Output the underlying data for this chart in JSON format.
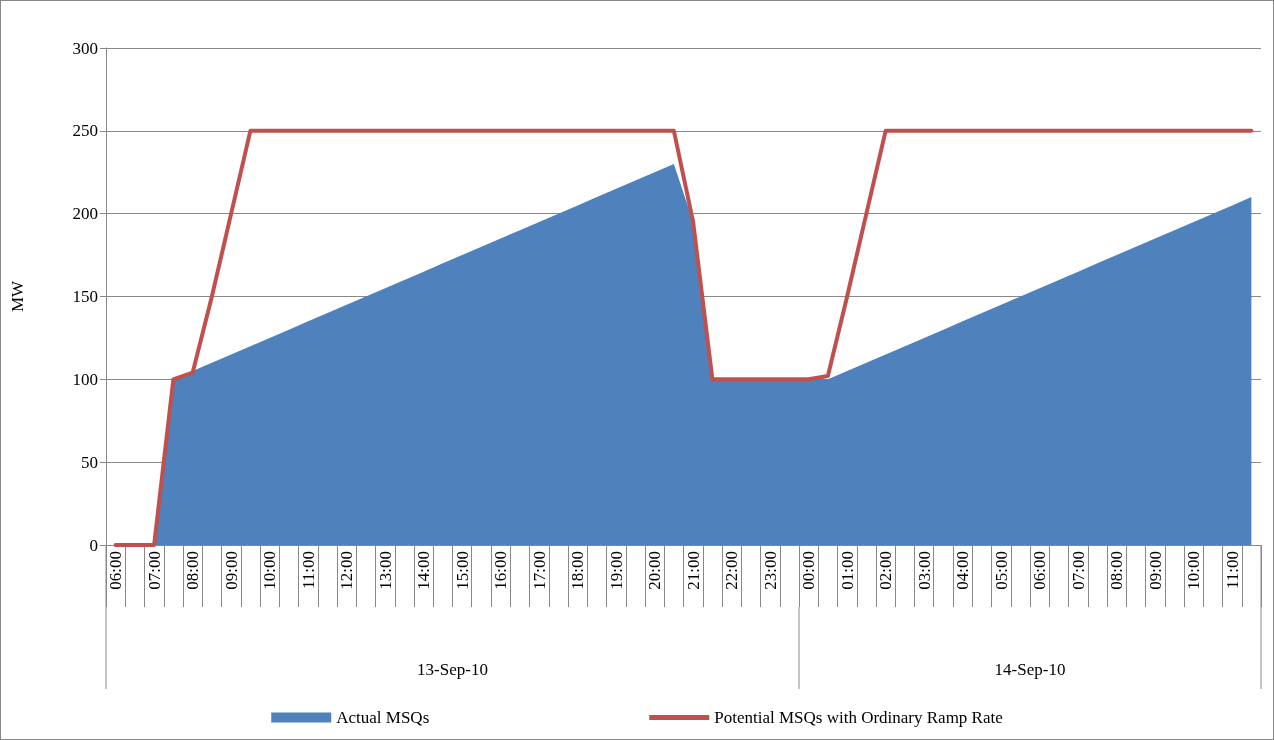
{
  "chart_data": {
    "type": "area",
    "ylabel": "MW",
    "categories": [
      "06:00",
      null,
      "07:00",
      null,
      "08:00",
      null,
      "09:00",
      null,
      "10:00",
      null,
      "11:00",
      null,
      "12:00",
      null,
      "13:00",
      null,
      "14:00",
      null,
      "15:00",
      null,
      "16:00",
      null,
      "17:00",
      null,
      "18:00",
      null,
      "19:00",
      null,
      "20:00",
      null,
      "21:00",
      null,
      "22:00",
      null,
      "23:00",
      null,
      "00:00",
      null,
      "01:00",
      null,
      "02:00",
      null,
      "03:00",
      null,
      "04:00",
      null,
      "05:00",
      null,
      "06:00",
      null,
      "07:00",
      null,
      "08:00",
      null,
      "09:00",
      null,
      "10:00",
      null,
      "11:00",
      null
    ],
    "series": [
      {
        "name": "Actual MSQs",
        "color": "#4f81bd",
        "values": [
          0,
          0,
          0,
          100,
          105,
          110,
          115,
          120,
          125,
          130,
          135,
          140,
          145,
          150,
          155,
          160,
          165,
          170,
          175,
          180,
          185,
          190,
          195,
          200,
          205,
          210,
          215,
          220,
          225,
          230,
          195,
          100,
          100,
          100,
          100,
          100,
          100,
          100,
          105,
          110,
          115,
          120,
          125,
          130,
          135,
          140,
          145,
          150,
          155,
          160,
          165,
          170,
          175,
          180,
          185,
          190,
          195,
          200,
          205,
          210
        ]
      },
      {
        "name": "Potential MSQs with Ordinary Ramp Rate",
        "type": "line",
        "color": "#c0504d",
        "values": [
          0,
          0,
          0,
          100,
          104,
          150,
          200,
          250,
          250,
          250,
          250,
          250,
          250,
          250,
          250,
          250,
          250,
          250,
          250,
          250,
          250,
          250,
          250,
          250,
          250,
          250,
          250,
          250,
          250,
          250,
          195,
          100,
          100,
          100,
          100,
          100,
          100,
          102,
          150,
          200,
          250,
          250,
          250,
          250,
          250,
          250,
          250,
          250,
          250,
          250,
          250,
          250,
          250,
          250,
          250,
          250,
          250,
          250,
          250,
          250
        ]
      }
    ],
    "ylim": [
      0,
      300
    ],
    "yticks": [
      0,
      50,
      100,
      150,
      200,
      250,
      300
    ],
    "grid": "y",
    "legend": "bottom",
    "marker": "none",
    "line_style": "solid",
    "annotations": [
      "13-Sep-10",
      "14-Sep-10"
    ]
  }
}
